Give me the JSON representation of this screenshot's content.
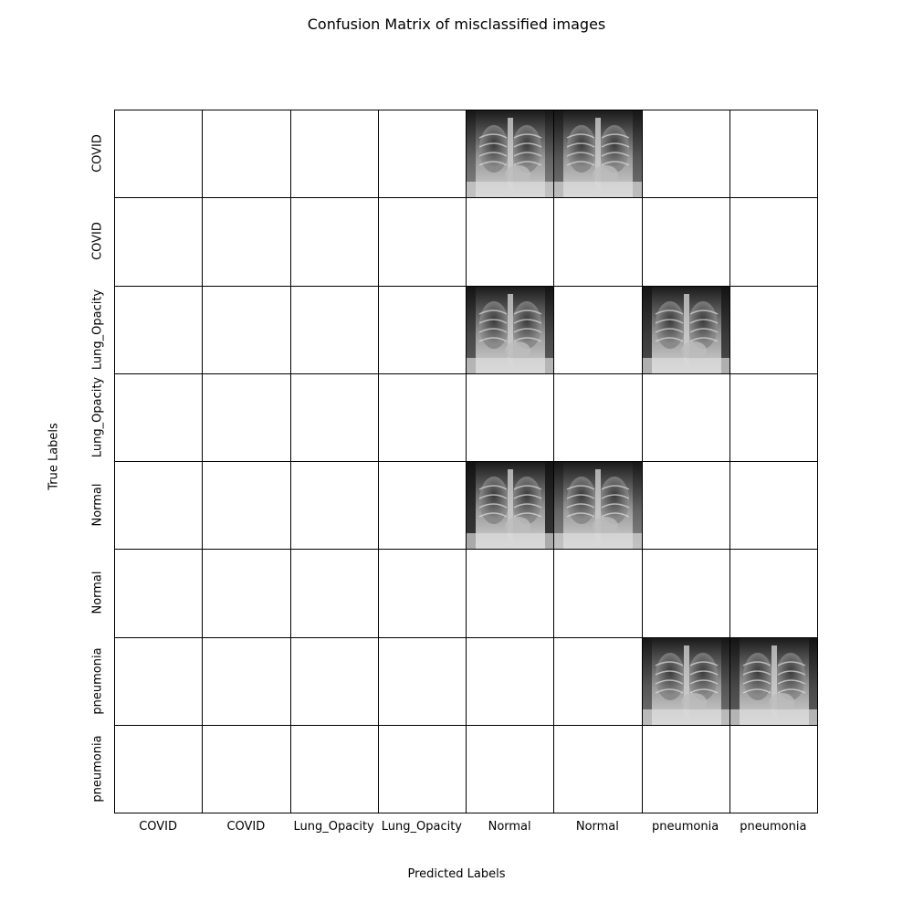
{
  "chart_data": {
    "type": "table",
    "title": "Confusion Matrix of misclassified images",
    "xlabel": "Predicted Labels",
    "ylabel": "True Labels",
    "x_tick_labels": [
      "COVID",
      "COVID",
      "Lung_Opacity",
      "Lung_Opacity",
      "Normal",
      "Normal",
      "pneumonia",
      "pneumonia"
    ],
    "y_tick_labels": [
      "COVID",
      "COVID",
      "Lung_Opacity",
      "Lung_Opacity",
      "Normal",
      "Normal",
      "pneumonia",
      "pneumonia"
    ],
    "grid": true,
    "cells_with_images": [
      {
        "row": 0,
        "col": 4,
        "image": "chest-xray"
      },
      {
        "row": 0,
        "col": 5,
        "image": "chest-xray"
      },
      {
        "row": 2,
        "col": 4,
        "image": "chest-xray"
      },
      {
        "row": 2,
        "col": 6,
        "image": "chest-xray"
      },
      {
        "row": 4,
        "col": 4,
        "image": "chest-xray"
      },
      {
        "row": 4,
        "col": 5,
        "image": "chest-xray"
      },
      {
        "row": 6,
        "col": 6,
        "image": "chest-xray"
      },
      {
        "row": 6,
        "col": 7,
        "image": "chest-xray"
      }
    ]
  }
}
